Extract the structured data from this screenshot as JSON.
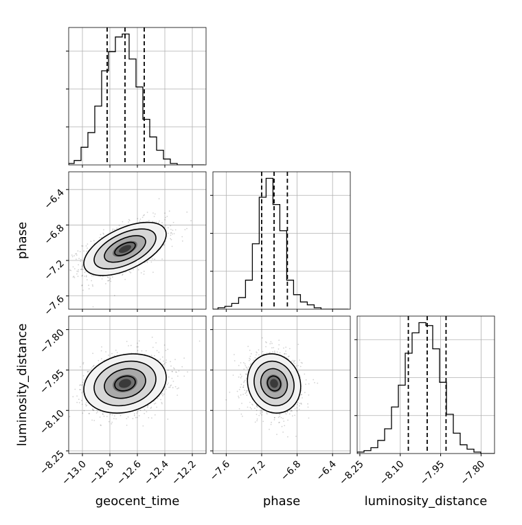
{
  "chart_data": {
    "type": "corner",
    "parameters": [
      {
        "name": "geocent_time",
        "range": [
          -13.1,
          -12.1
        ],
        "ticks": [
          -13.0,
          -12.8,
          -12.6,
          -12.4,
          -12.2
        ],
        "tick_labels": [
          "−13.0",
          "−12.8",
          "−12.6",
          "−12.4",
          "−12.2"
        ],
        "quantiles": [
          -12.82,
          -12.69,
          -12.55
        ],
        "hist_bin_start": -13.11,
        "hist_bin_width": 0.05,
        "hist_counts": [
          1,
          3,
          12,
          22,
          40,
          64,
          77,
          87,
          89,
          72,
          53,
          31,
          19,
          10,
          4,
          1,
          0,
          0,
          0,
          0
        ]
      },
      {
        "name": "phase",
        "range": [
          -7.75,
          -6.2
        ],
        "ticks": [
          -7.6,
          -7.2,
          -6.8,
          -6.4
        ],
        "tick_labels": [
          "−7.6",
          "−7.2",
          "−6.8",
          "−6.4"
        ],
        "quantiles": [
          -7.2,
          -7.06,
          -6.91
        ],
        "hist_bin_start": -7.77,
        "hist_bin_width": 0.0775,
        "hist_counts": [
          0,
          1,
          2,
          4,
          8,
          20,
          45,
          77,
          90,
          72,
          54,
          20,
          10,
          5,
          3,
          1,
          0,
          0,
          0,
          0
        ]
      },
      {
        "name": "luminosity_distance",
        "range": [
          -8.26,
          -7.75
        ],
        "ticks": [
          -8.25,
          -8.1,
          -7.95,
          -7.8
        ],
        "tick_labels": [
          "−8.25",
          "−8.10",
          "−7.95",
          "−7.80"
        ],
        "quantiles": [
          -8.07,
          -8.0,
          -7.93
        ],
        "hist_bin_start": -8.26,
        "hist_bin_width": 0.0255,
        "hist_counts": [
          1,
          2,
          4,
          9,
          17,
          32,
          47,
          69,
          83,
          90,
          88,
          72,
          49,
          27,
          14,
          6,
          3,
          1,
          0,
          0
        ]
      }
    ],
    "pairs": [
      {
        "x": "geocent_time",
        "y": "phase",
        "center": [
          -12.69,
          -7.07
        ],
        "sigma": [
          0.15,
          0.15
        ],
        "correlation": 0.55
      },
      {
        "x": "geocent_time",
        "y": "luminosity_distance",
        "center": [
          -12.69,
          -8.0
        ],
        "sigma": [
          0.15,
          0.055
        ],
        "correlation": 0.2
      },
      {
        "x": "phase",
        "y": "luminosity_distance",
        "center": [
          -7.06,
          -8.0
        ],
        "sigma": [
          0.15,
          0.055
        ],
        "correlation": -0.1
      }
    ],
    "contour_levels_sigma": [
      0.5,
      1.0,
      1.5,
      2.0
    ],
    "grid": true,
    "colors": {
      "hist_line": "#000000",
      "grid": "#b0b0b0",
      "points": "#000000",
      "density": "#000000"
    }
  }
}
